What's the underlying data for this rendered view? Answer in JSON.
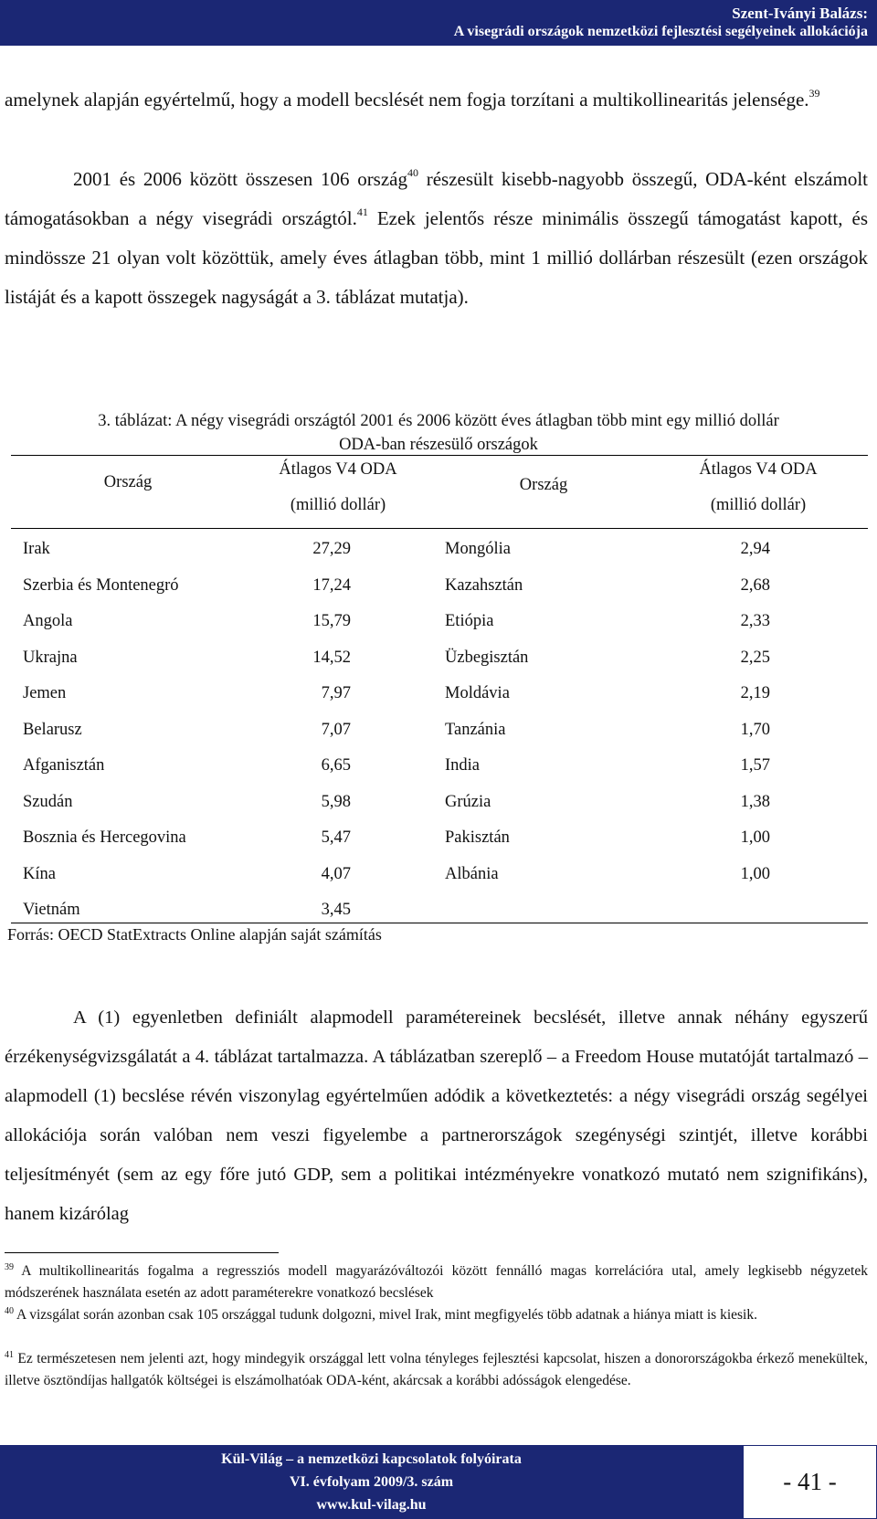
{
  "header": {
    "author": "Szent-Iványi Balázs:",
    "title": "A visegrádi országok nemzetközi fejlesztési segélyeinek allokációja"
  },
  "body": {
    "p1_text": "amelynek alapján egyértelmű, hogy a modell becslését nem fogja torzítani a multikollinearitás jelensége.",
    "p1_fn": "39",
    "p2_a": "2001 és 2006 között összesen 106 ország",
    "p2_fn1": "40",
    "p2_b": " részesült kisebb-nagyobb összegű, ODA-ként elszámolt támogatásokban a négy visegrádi országtól.",
    "p2_fn2": "41",
    "p2_c": " Ezek jelentős része minimális összegű támogatást kapott, és mindössze 21 olyan volt közöttük, amely éves átlagban több, mint 1 millió dollárban részesült (ezen országok listáját és a kapott összegek nagyságát a 3. táblázat mutatja).",
    "p3": "A (1) egyenletben definiált alapmodell paramétereinek becslését, illetve annak néhány egyszerű érzékenységvizsgálatát a 4. táblázat tartalmazza. A táblázatban szereplő – a Freedom House mutatóját tartalmazó – alapmodell (1) becslése révén viszonylag egyértelműen adódik a következtetés: a négy visegrádi ország segélyei allokációja során valóban nem veszi figyelembe a partnerországok szegénységi szintjét, illetve korábbi teljesítményét (sem az egy főre jutó GDP, sem a politikai intézményekre vonatkozó mutató nem szignifikáns), hanem kizárólag"
  },
  "table": {
    "caption_line1": "3. táblázat: A négy visegrádi országtól 2001 és 2006 között éves átlagban több mint egy millió dollár",
    "caption_line2": "ODA-ban részesülő országok",
    "head_country": "Ország",
    "head_oda_1": "Átlagos V4 ODA",
    "head_oda_2": "(millió dollár)",
    "left": [
      {
        "country": "Irak",
        "value": "27,29"
      },
      {
        "country": "Szerbia és Montenegró",
        "value": "17,24"
      },
      {
        "country": "Angola",
        "value": "15,79"
      },
      {
        "country": "Ukrajna",
        "value": "14,52"
      },
      {
        "country": "Jemen",
        "value": "7,97"
      },
      {
        "country": "Belarusz",
        "value": "7,07"
      },
      {
        "country": "Afganisztán",
        "value": "6,65"
      },
      {
        "country": "Szudán",
        "value": "5,98"
      },
      {
        "country": "Bosznia és Hercegovina",
        "value": "5,47"
      },
      {
        "country": "Kína",
        "value": "4,07"
      },
      {
        "country": "Vietnám",
        "value": "3,45"
      }
    ],
    "right": [
      {
        "country": "Mongólia",
        "value": "2,94"
      },
      {
        "country": "Kazahsztán",
        "value": "2,68"
      },
      {
        "country": "Etiópia",
        "value": "2,33"
      },
      {
        "country": "Üzbegisztán",
        "value": "2,25"
      },
      {
        "country": "Moldávia",
        "value": "2,19"
      },
      {
        "country": "Tanzánia",
        "value": "1,70"
      },
      {
        "country": "India",
        "value": "1,57"
      },
      {
        "country": "Grúzia",
        "value": "1,38"
      },
      {
        "country": "Pakisztán",
        "value": "1,00"
      },
      {
        "country": "Albánia",
        "value": "1,00"
      }
    ],
    "source": "Forrás: OECD StatExtracts Online alapján saját számítás"
  },
  "footnotes": [
    {
      "num": "39",
      "text": " A multikollinearitás fogalma a regressziós modell magyarázóváltozói között fennálló magas korrelációra utal, amely legkisebb négyzetek módszerének használata esetén az adott paraméterekre vonatkozó becslések"
    },
    {
      "num": "40",
      "text": " A vizsgálat során azonban csak 105 országgal tudunk dolgozni, mivel Irak, mint megfigyelés több adatnak a hiánya miatt is kiesik."
    },
    {
      "num": "41",
      "text": " Ez természetesen nem jelenti azt, hogy mindegyik országgal lett volna tényleges fejlesztési kapcsolat, hiszen a donorországokba érkező menekültek, illetve ösztöndíjas hallgatók költségei is elszámolhatóak ODA-ként, akárcsak a korábbi adósságok elengedése."
    }
  ],
  "footer": {
    "journal": "Kül-Világ – a nemzetközi kapcsolatok folyóirata",
    "issue": "VI. évfolyam 2009/3. szám",
    "url": "www.kul-vilag.hu",
    "page": "- 41 -"
  },
  "colors": {
    "band": "#1b2774",
    "band_text": "#ffffff"
  }
}
